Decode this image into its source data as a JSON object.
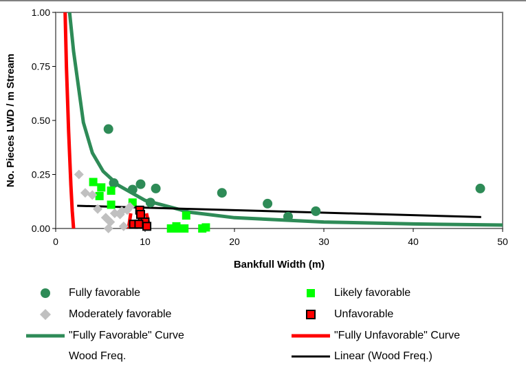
{
  "chart_data": {
    "type": "scatter",
    "xlabel": "Bankfull Width (m)",
    "ylabel": "No. Pieces LWD / m Stream",
    "xlim": [
      0,
      50
    ],
    "ylim": [
      0,
      1.0
    ],
    "x_ticks": [
      "0",
      "10",
      "20",
      "30",
      "40",
      "50"
    ],
    "y_ticks": [
      "0.00",
      "0.25",
      "0.50",
      "0.75",
      "1.00"
    ],
    "grid": false,
    "legend_position": "bottom",
    "series": [
      {
        "name": "Fully favorable",
        "marker": "circle",
        "color": "#2e8b57",
        "points": [
          [
            5.9,
            0.46
          ],
          [
            6.5,
            0.21
          ],
          [
            8.6,
            0.18
          ],
          [
            9.5,
            0.205
          ],
          [
            10.6,
            0.12
          ],
          [
            11.2,
            0.185
          ],
          [
            18.6,
            0.165
          ],
          [
            23.7,
            0.115
          ],
          [
            26.0,
            0.055
          ],
          [
            29.1,
            0.08
          ],
          [
            47.5,
            0.185
          ]
        ]
      },
      {
        "name": "Likely favorable",
        "marker": "square",
        "color": "#00ff00",
        "points": [
          [
            4.2,
            0.215
          ],
          [
            5.1,
            0.19
          ],
          [
            4.9,
            0.15
          ],
          [
            6.2,
            0.175
          ],
          [
            6.2,
            0.11
          ],
          [
            8.6,
            0.12
          ],
          [
            12.9,
            0.0
          ],
          [
            13.5,
            0.01
          ],
          [
            14.4,
            0.0
          ],
          [
            14.6,
            0.06
          ],
          [
            16.4,
            0.0
          ],
          [
            16.8,
            0.005
          ],
          [
            13.8,
            0.0
          ]
        ]
      },
      {
        "name": "Moderately favorable",
        "marker": "diamond",
        "color": "#c0c0c0",
        "points": [
          [
            2.6,
            0.25
          ],
          [
            3.3,
            0.165
          ],
          [
            4.1,
            0.155
          ],
          [
            4.7,
            0.09
          ],
          [
            5.6,
            0.05
          ],
          [
            6.1,
            0.03
          ],
          [
            5.9,
            0.0
          ],
          [
            6.6,
            0.07
          ],
          [
            7.2,
            0.065
          ],
          [
            7.6,
            0.01
          ],
          [
            7.4,
            0.08
          ],
          [
            8.3,
            0.1
          ],
          [
            8.0,
            0.085
          ]
        ]
      },
      {
        "name": "Unfavorable",
        "marker": "square-outline",
        "color": "#ff0000",
        "points": [
          [
            8.7,
            0.02
          ],
          [
            9.4,
            0.085
          ],
          [
            9.5,
            0.065
          ],
          [
            9.7,
            0.03
          ],
          [
            10.0,
            0.03
          ],
          [
            10.2,
            0.01
          ],
          [
            9.3,
            0.02
          ]
        ]
      },
      {
        "name": "\"Fully Favorable\" Curve",
        "type": "line",
        "color": "#2e8b57",
        "points": [
          [
            1.55,
            1.0
          ],
          [
            2.0,
            0.82
          ],
          [
            3.1,
            0.49
          ],
          [
            4.1,
            0.35
          ],
          [
            5.3,
            0.265
          ],
          [
            7.0,
            0.2
          ],
          [
            10.0,
            0.13
          ],
          [
            15.0,
            0.075
          ],
          [
            20.0,
            0.05
          ],
          [
            30.0,
            0.03
          ],
          [
            40.0,
            0.021
          ],
          [
            50.0,
            0.016
          ]
        ]
      },
      {
        "name": "\"Fully Unfavorable\" Curve",
        "type": "line",
        "color": "#ff0000",
        "segments": [
          [
            [
              1.05,
              1.0
            ],
            [
              1.2,
              0.75
            ],
            [
              1.45,
              0.45
            ],
            [
              1.7,
              0.2
            ],
            [
              1.85,
              0.08
            ],
            [
              2.0,
              0.0
            ]
          ],
          [
            [
              8.15,
              0.0
            ],
            [
              8.4,
              0.07
            ]
          ],
          [
            [
              10.15,
              0.07
            ],
            [
              10.5,
              0.0
            ]
          ]
        ]
      },
      {
        "name": "Wood Freq.",
        "type": "none"
      },
      {
        "name": "Linear (Wood Freq.)",
        "type": "line",
        "color": "#000000",
        "points": [
          [
            2.4,
            0.105
          ],
          [
            47.6,
            0.053
          ]
        ]
      }
    ]
  },
  "legend": {
    "fully_favorable": "Fully favorable",
    "likely_favorable": "Likely favorable",
    "moderately_favorable": "Moderately favorable",
    "unfavorable": "Unfavorable",
    "fully_favorable_curve": "\"Fully Favorable\" Curve",
    "fully_unfavorable_curve": "\"Fully Unfavorable\" Curve",
    "wood_freq": "Wood Freq.",
    "linear_wood_freq": "Linear (Wood Freq.)",
    "colors": {
      "fully_favorable": "#2e8b57",
      "likely_favorable": "#00ff00",
      "moderately_favorable": "#c0c0c0",
      "unfavorable": "#ff0000",
      "linear": "#000000"
    }
  }
}
